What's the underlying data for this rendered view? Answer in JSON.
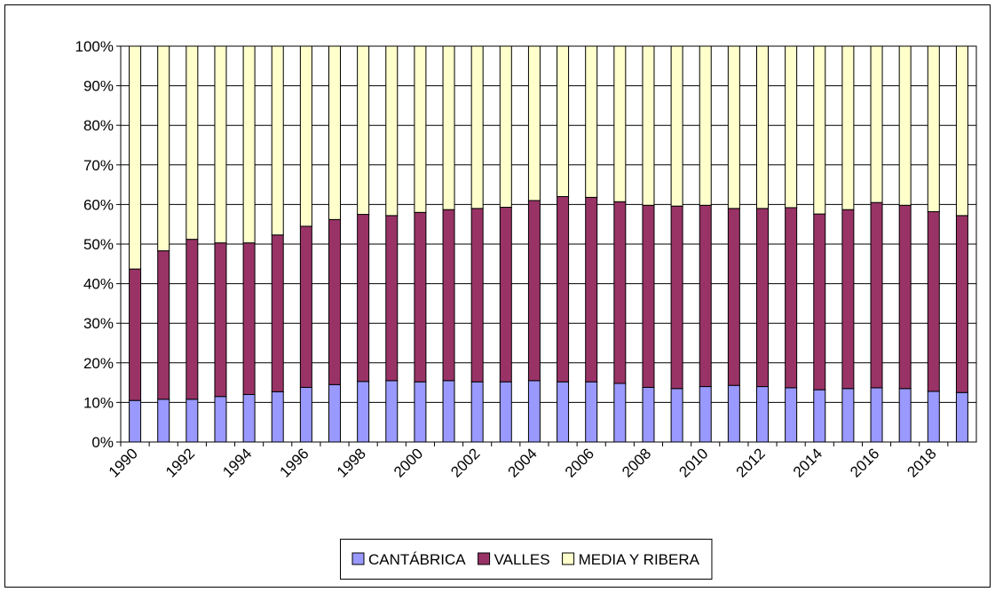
{
  "chart_data": {
    "type": "bar",
    "stacked": true,
    "categories": [
      "1990",
      null,
      "1992",
      null,
      "1994",
      null,
      "1996",
      null,
      "1998",
      null,
      "2000",
      null,
      "2002",
      null,
      "2004",
      null,
      "2006",
      null,
      "2008",
      null,
      "2010",
      null,
      "2012",
      null,
      "2014",
      null,
      "2016",
      null,
      "2018",
      null
    ],
    "series": [
      {
        "name": "CANTÁBRICA",
        "color": "#9999ff",
        "values": [
          10.5,
          10.8,
          10.8,
          11.5,
          12,
          12.7,
          13.8,
          14.5,
          15.3,
          15.5,
          15.2,
          15.5,
          15.2,
          15.2,
          15.5,
          15.2,
          15.2,
          14.8,
          13.8,
          13.5,
          14,
          14.3,
          14,
          13.7,
          13.2,
          13.5,
          13.7,
          13.5,
          12.8,
          12.5
        ]
      },
      {
        "name": "VALLES",
        "color": "#993366",
        "values": [
          33.2,
          37.5,
          40.4,
          38.8,
          38.3,
          39.6,
          40.7,
          41.7,
          42.2,
          41.7,
          42.8,
          43.2,
          43.8,
          44.1,
          45.5,
          46.8,
          46.6,
          45.9,
          46.0,
          46.1,
          45.8,
          44.7,
          45.0,
          45.5,
          44.4,
          45.2,
          46.8,
          46.3,
          45.4,
          44.7
        ]
      },
      {
        "name": "MEDIA Y RIBERA",
        "color": "#ffffcc",
        "values": [
          56.3,
          51.7,
          48.8,
          49.7,
          49.7,
          47.7,
          45.5,
          43.8,
          42.5,
          42.8,
          42,
          41.3,
          41,
          40.7,
          39,
          38,
          38.2,
          39.3,
          40.2,
          40.4,
          40.2,
          41,
          41,
          40.8,
          42.4,
          41.3,
          39.5,
          40.2,
          41.8,
          42.8
        ]
      }
    ],
    "ylim": [
      0,
      100
    ],
    "yticks": [
      {
        "value": 0,
        "label": "0%"
      },
      {
        "value": 10,
        "label": "10%"
      },
      {
        "value": 20,
        "label": "20%"
      },
      {
        "value": 30,
        "label": "30%"
      },
      {
        "value": 40,
        "label": "40%"
      },
      {
        "value": 50,
        "label": "50%"
      },
      {
        "value": 60,
        "label": "60%"
      },
      {
        "value": 70,
        "label": "70%"
      },
      {
        "value": 80,
        "label": "80%"
      },
      {
        "value": 90,
        "label": "90%"
      },
      {
        "value": 100,
        "label": "100%"
      }
    ],
    "grid": true,
    "legend": "bottom"
  }
}
